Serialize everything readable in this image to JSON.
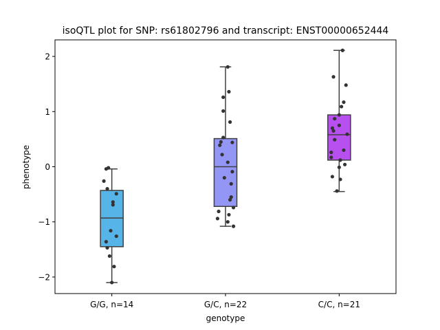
{
  "chart_data": {
    "type": "box",
    "title": "isoQTL plot for SNP: rs61802796 and transcript: ENST00000652444",
    "xlabel": "genotype",
    "ylabel": "phenotype",
    "ylim": [
      -2.3,
      2.3
    ],
    "yticks": [
      -2,
      -1,
      0,
      1,
      2
    ],
    "categories": [
      "G/G, n=14",
      "G/C, n=22",
      "C/C, n=21"
    ],
    "colors": [
      "#56b4e9",
      "#9496f6",
      "#b750ef"
    ],
    "boxes": [
      {
        "whislo": -2.1,
        "q1": -1.45,
        "med": -0.93,
        "q3": -0.43,
        "whishi": -0.04
      },
      {
        "whislo": -1.08,
        "q1": -0.72,
        "med": 0.0,
        "q3": 0.51,
        "whishi": 1.81
      },
      {
        "whislo": -0.45,
        "q1": 0.12,
        "med": 0.58,
        "q3": 0.94,
        "whishi": 2.11
      }
    ],
    "points": [
      [
        {
          "dx": -0.05,
          "y": -0.04
        },
        {
          "dx": -0.07,
          "y": -0.26
        },
        {
          "dx": -0.04,
          "y": -0.4
        },
        {
          "dx": 0.04,
          "y": -0.49
        },
        {
          "dx": 0.01,
          "y": -0.64
        },
        {
          "dx": 0.01,
          "y": -0.69
        },
        {
          "dx": -0.01,
          "y": -1.16
        },
        {
          "dx": 0.04,
          "y": -1.26
        },
        {
          "dx": -0.05,
          "y": -1.36
        },
        {
          "dx": -0.04,
          "y": -1.47
        },
        {
          "dx": -0.02,
          "y": -1.62
        },
        {
          "dx": 0.02,
          "y": -1.81
        },
        {
          "dx": 0.0,
          "y": -2.1
        },
        {
          "dx": -0.03,
          "y": -0.02
        }
      ],
      [
        {
          "dx": 0.02,
          "y": 1.81
        },
        {
          "dx": 0.03,
          "y": 1.36
        },
        {
          "dx": -0.02,
          "y": 1.26
        },
        {
          "dx": -0.02,
          "y": 1.01
        },
        {
          "dx": 0.04,
          "y": 0.81
        },
        {
          "dx": -0.02,
          "y": 0.53
        },
        {
          "dx": 0.06,
          "y": 0.44
        },
        {
          "dx": -0.05,
          "y": 0.39
        },
        {
          "dx": -0.03,
          "y": 0.22
        },
        {
          "dx": 0.02,
          "y": 0.08
        },
        {
          "dx": 0.06,
          "y": -0.09
        },
        {
          "dx": -0.01,
          "y": -0.2
        },
        {
          "dx": 0.05,
          "y": -0.31
        },
        {
          "dx": 0.05,
          "y": -0.55
        },
        {
          "dx": 0.04,
          "y": -0.6
        },
        {
          "dx": 0.07,
          "y": -0.74
        },
        {
          "dx": -0.06,
          "y": -0.81
        },
        {
          "dx": 0.03,
          "y": -0.87
        },
        {
          "dx": -0.07,
          "y": -0.94
        },
        {
          "dx": 0.02,
          "y": -1.0
        },
        {
          "dx": 0.07,
          "y": -1.08
        },
        {
          "dx": -0.04,
          "y": 0.45
        }
      ],
      [
        {
          "dx": 0.03,
          "y": 2.11
        },
        {
          "dx": -0.05,
          "y": 1.63
        },
        {
          "dx": 0.06,
          "y": 1.48
        },
        {
          "dx": 0.04,
          "y": 1.17
        },
        {
          "dx": 0.02,
          "y": 1.09
        },
        {
          "dx": 0.0,
          "y": 0.94
        },
        {
          "dx": -0.04,
          "y": 0.87
        },
        {
          "dx": 0.0,
          "y": 0.75
        },
        {
          "dx": -0.06,
          "y": 0.7
        },
        {
          "dx": -0.05,
          "y": 0.65
        },
        {
          "dx": 0.07,
          "y": 0.59
        },
        {
          "dx": -0.04,
          "y": 0.49
        },
        {
          "dx": 0.04,
          "y": 0.3
        },
        {
          "dx": -0.07,
          "y": 0.26
        },
        {
          "dx": -0.07,
          "y": 0.17
        },
        {
          "dx": 0.01,
          "y": 0.12
        },
        {
          "dx": 0.05,
          "y": 0.04
        },
        {
          "dx": 0.0,
          "y": -0.01
        },
        {
          "dx": -0.06,
          "y": -0.18
        },
        {
          "dx": 0.01,
          "y": -0.23
        },
        {
          "dx": -0.02,
          "y": -0.44
        }
      ]
    ]
  }
}
